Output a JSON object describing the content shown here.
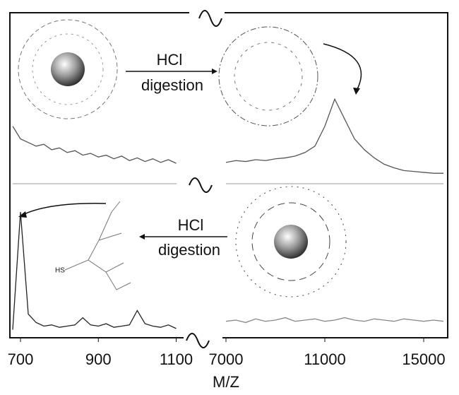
{
  "chart_data": [
    {
      "type": "line",
      "color": "#555555",
      "x": [
        680,
        700,
        720,
        740,
        760,
        780,
        800,
        820,
        840,
        860,
        880,
        900,
        920,
        940,
        960,
        980,
        1000,
        1020,
        1040,
        1060,
        1080,
        1100
      ],
      "values": [
        62,
        48,
        44,
        40,
        42,
        36,
        38,
        33,
        35,
        30,
        32,
        28,
        30,
        26,
        29,
        24,
        27,
        23,
        26,
        22,
        25,
        21
      ],
      "xlim": [
        680,
        1110
      ],
      "ylim": [
        0,
        100
      ]
    },
    {
      "type": "line",
      "color": "#555555",
      "x": [
        7000,
        7400,
        7800,
        8200,
        8600,
        9000,
        9400,
        9800,
        10200,
        10600,
        11000,
        11400,
        11800,
        12200,
        12600,
        13000,
        13400,
        13800,
        14200,
        14600,
        15000,
        15400,
        15800
      ],
      "values": [
        22,
        24,
        23,
        25,
        24,
        26,
        27,
        29,
        33,
        40,
        62,
        92,
        70,
        48,
        36,
        27,
        20,
        16,
        13,
        12,
        11,
        10,
        10
      ],
      "xlim": [
        7000,
        15800
      ],
      "ylim": [
        0,
        100
      ]
    },
    {
      "type": "line",
      "color": "#222222",
      "x": [
        680,
        700,
        720,
        740,
        760,
        780,
        800,
        820,
        840,
        860,
        880,
        900,
        920,
        940,
        960,
        980,
        1000,
        1020,
        1040,
        1060,
        1080,
        1100
      ],
      "values": [
        2,
        100,
        15,
        8,
        5,
        6,
        4,
        5,
        6,
        12,
        6,
        5,
        7,
        4,
        5,
        6,
        18,
        7,
        5,
        4,
        6,
        3
      ],
      "xlim": [
        680,
        1110
      ],
      "ylim": [
        0,
        100
      ],
      "xticks": [
        700,
        900,
        1100
      ]
    },
    {
      "type": "line",
      "color": "#888888",
      "x": [
        7000,
        7400,
        7800,
        8200,
        8600,
        9000,
        9400,
        9800,
        10200,
        10600,
        11000,
        11400,
        11800,
        12200,
        12600,
        13000,
        13400,
        13800,
        14200,
        14600,
        15000,
        15400,
        15800
      ],
      "values": [
        9,
        10,
        8,
        11,
        9,
        10,
        12,
        9,
        10,
        11,
        9,
        10,
        12,
        10,
        9,
        11,
        10,
        9,
        11,
        10,
        9,
        10,
        9
      ],
      "xlim": [
        7000,
        15800
      ],
      "ylim": [
        0,
        100
      ],
      "xticks": [
        7000,
        11000,
        15000
      ]
    }
  ],
  "figure": {
    "xlabel": "M/Z",
    "top_arrow": [
      "HCl",
      "digestion"
    ],
    "bottom_arrow": [
      "HCl",
      "digestion"
    ],
    "thiol": "HS"
  }
}
